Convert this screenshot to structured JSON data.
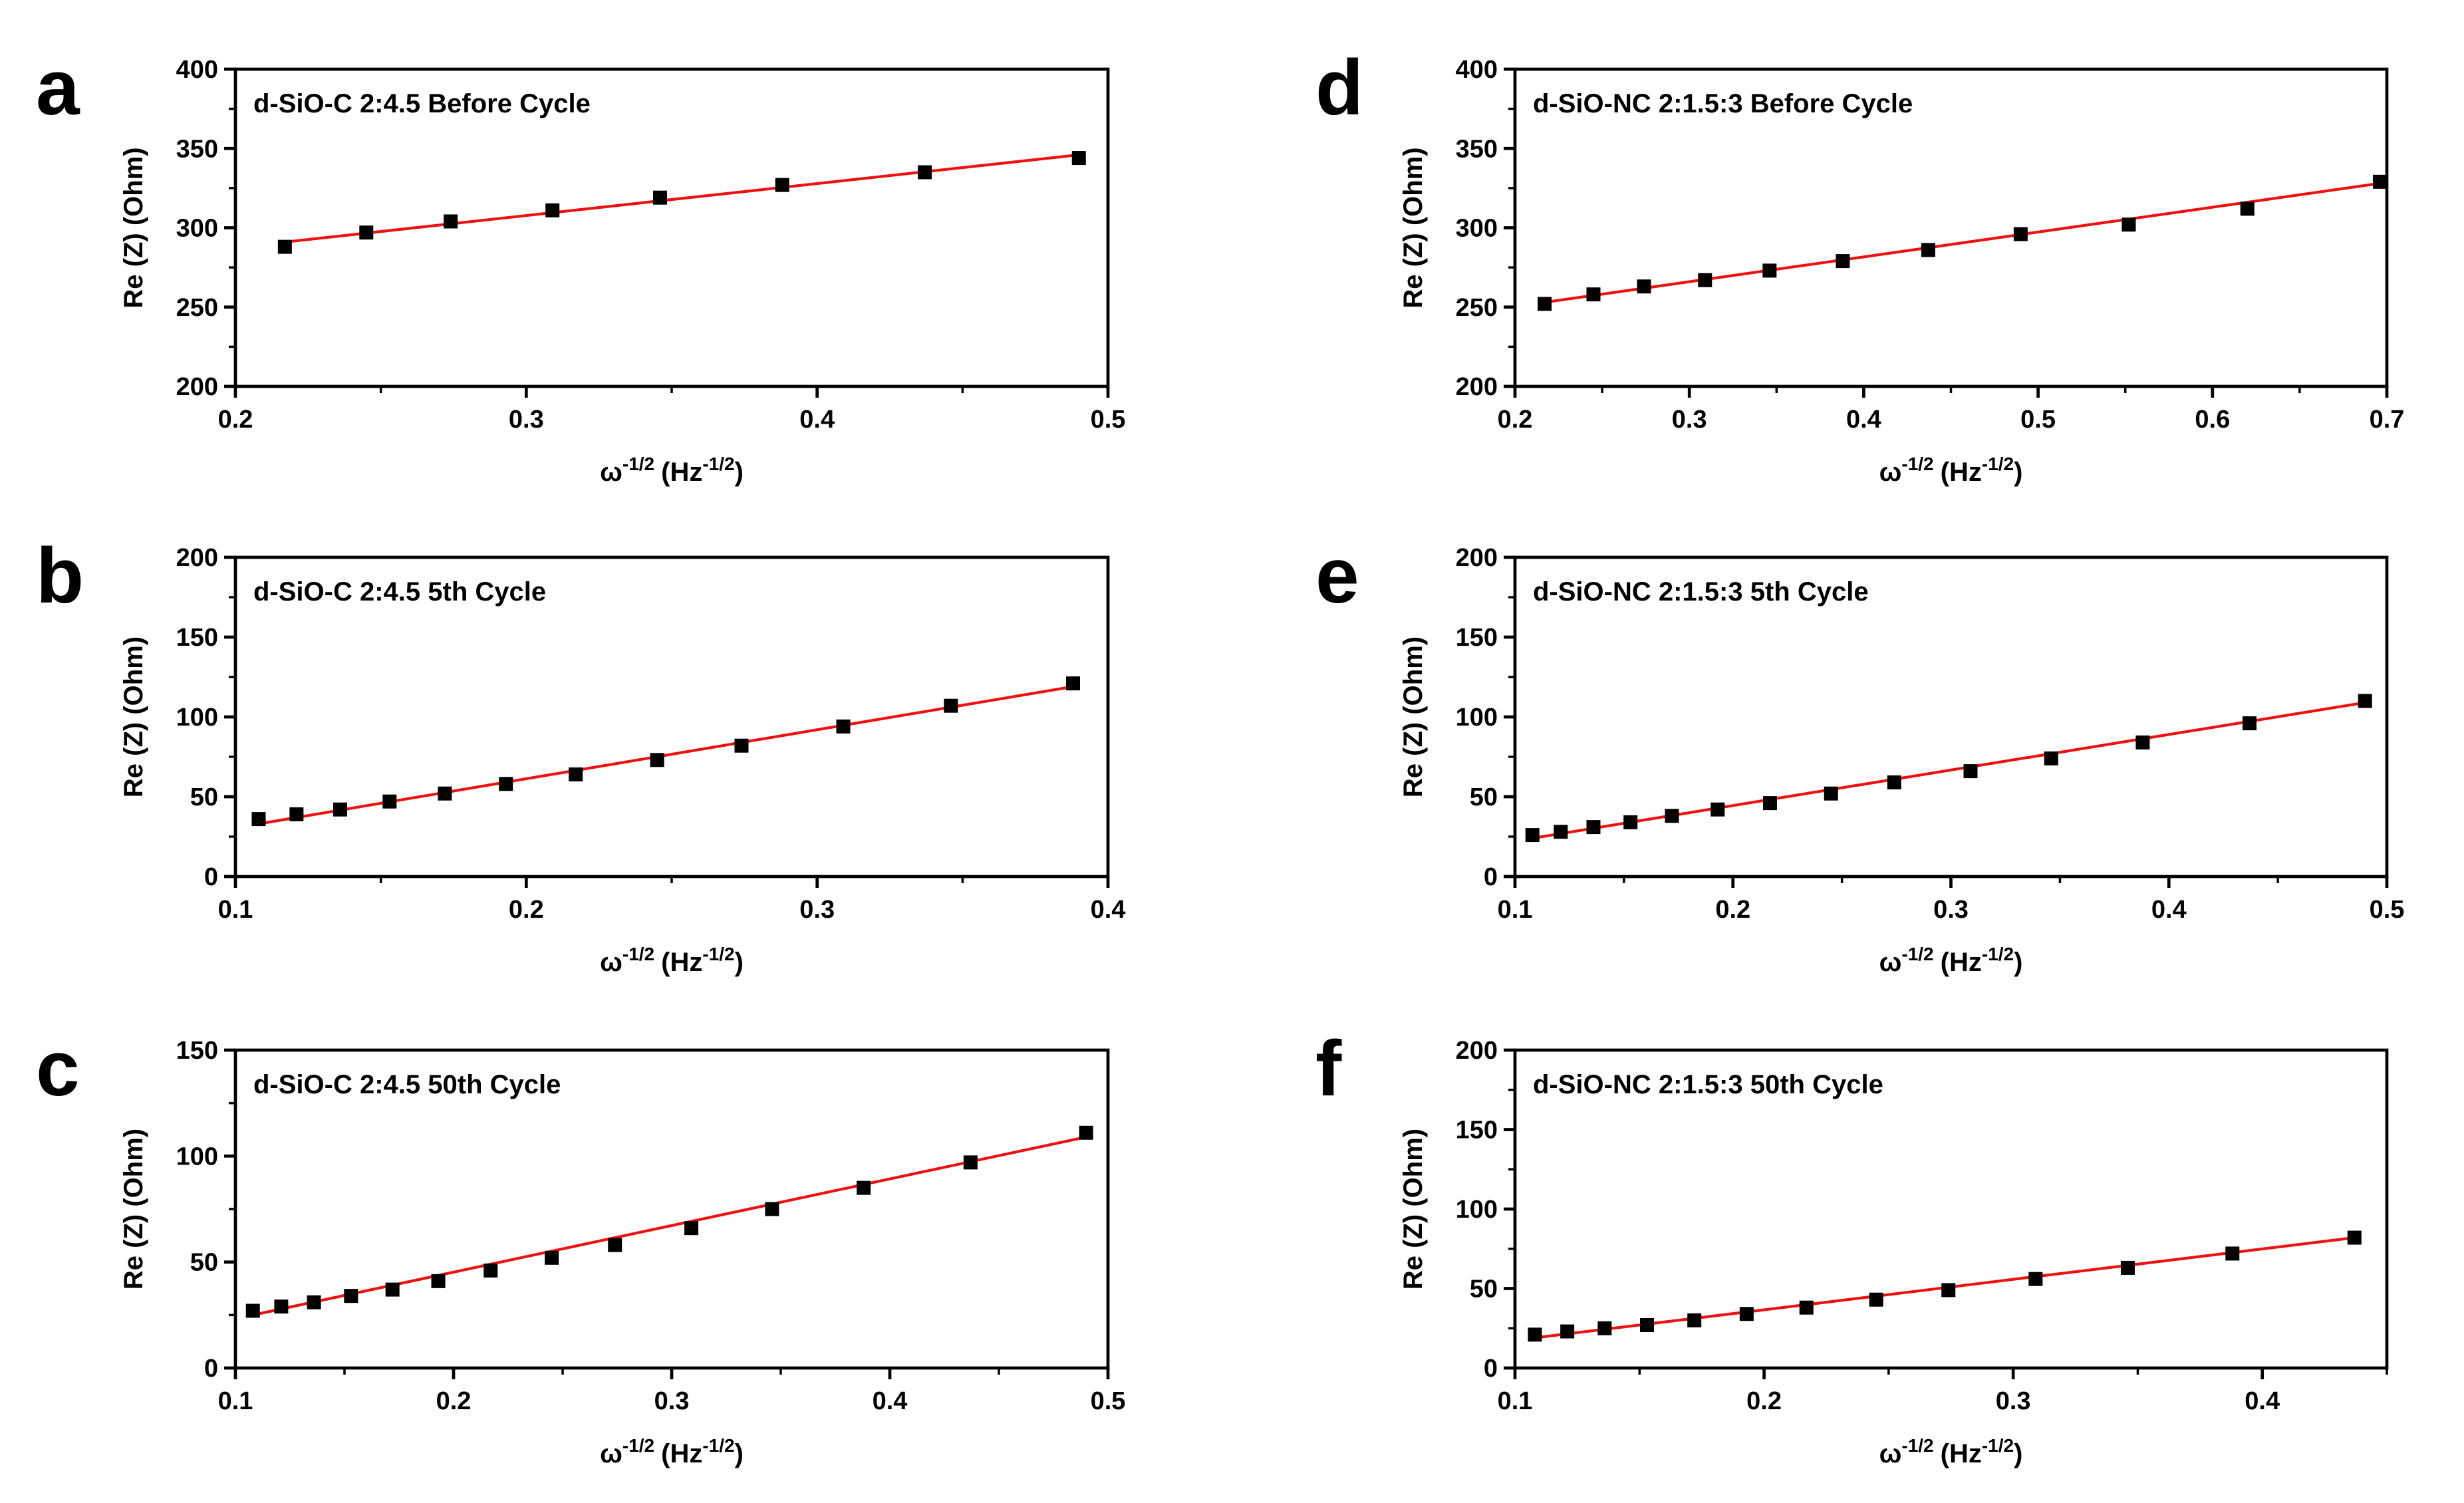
{
  "figure": {
    "x_axis_label": "ω",
    "x_axis_exponent": "-1/2",
    "x_axis_unit_open": "(Hz",
    "x_axis_unit_exponent": "-1/2",
    "x_axis_unit_close": ")",
    "y_axis_label": "Re (Z) (Ohm)",
    "marker_color": "#000000",
    "fit_color": "#ee1111"
  },
  "chart_data": [
    {
      "letter": "a",
      "title": "d-SiO-C 2:4.5 Before Cycle",
      "type": "scatter",
      "xlim": [
        0.2,
        0.5
      ],
      "ylim": [
        200,
        400
      ],
      "xticks": [
        0.2,
        0.3,
        0.4,
        0.5
      ],
      "yticks": [
        200,
        250,
        300,
        350,
        400
      ],
      "xticklabels": [
        "0.2",
        "0.3",
        "0.4",
        "0.5"
      ],
      "yticklabels": [
        "200",
        "250",
        "300",
        "350",
        "400"
      ],
      "x": [
        0.217,
        0.245,
        0.274,
        0.309,
        0.346,
        0.388,
        0.437,
        0.49
      ],
      "y": [
        288,
        297,
        304,
        311,
        319,
        327,
        335,
        344
      ],
      "fit": {
        "x": [
          0.217,
          0.49
        ],
        "y": [
          291,
          346
        ]
      }
    },
    {
      "letter": "b",
      "title": "d-SiO-C 2:4.5 5th Cycle",
      "type": "scatter",
      "xlim": [
        0.1,
        0.4
      ],
      "ylim": [
        0,
        200
      ],
      "xticks": [
        0.1,
        0.2,
        0.3,
        0.4
      ],
      "yticks": [
        0,
        50,
        100,
        150,
        200
      ],
      "xticklabels": [
        "0.1",
        "0.2",
        "0.3",
        "0.4"
      ],
      "yticklabels": [
        "0",
        "50",
        "100",
        "150",
        "200"
      ],
      "x": [
        0.108,
        0.121,
        0.136,
        0.153,
        0.172,
        0.193,
        0.217,
        0.245,
        0.274,
        0.309,
        0.346,
        0.388
      ],
      "y": [
        36,
        39,
        42,
        47,
        52,
        58,
        64,
        73,
        82,
        94,
        107,
        121
      ],
      "fit": {
        "x": [
          0.108,
          0.388
        ],
        "y": [
          33,
          119
        ]
      }
    },
    {
      "letter": "c",
      "title": "d-SiO-C 2:4.5 50th Cycle",
      "type": "scatter",
      "xlim": [
        0.1,
        0.5
      ],
      "ylim": [
        0,
        150
      ],
      "xticks": [
        0.1,
        0.2,
        0.3,
        0.4,
        0.5
      ],
      "yticks": [
        0,
        50,
        100,
        150
      ],
      "xticklabels": [
        "0.1",
        "0.2",
        "0.3",
        "0.4",
        "0.5"
      ],
      "yticklabels": [
        "0",
        "50",
        "100",
        "150"
      ],
      "x": [
        0.108,
        0.121,
        0.136,
        0.153,
        0.172,
        0.193,
        0.217,
        0.245,
        0.274,
        0.309,
        0.346,
        0.388,
        0.437,
        0.49
      ],
      "y": [
        27,
        29,
        31,
        34,
        37,
        41,
        46,
        52,
        58,
        66,
        75,
        85,
        97,
        111
      ],
      "fit": {
        "x": [
          0.108,
          0.49
        ],
        "y": [
          25,
          109
        ]
      }
    },
    {
      "letter": "d",
      "title": "d-SiO-NC 2:1.5:3 Before Cycle",
      "type": "scatter",
      "xlim": [
        0.2,
        0.7
      ],
      "ylim": [
        200,
        400
      ],
      "xticks": [
        0.2,
        0.3,
        0.4,
        0.5,
        0.6,
        0.7
      ],
      "yticks": [
        200,
        250,
        300,
        350,
        400
      ],
      "xticklabels": [
        "0.2",
        "0.3",
        "0.4",
        "0.5",
        "0.6",
        "0.7"
      ],
      "yticklabels": [
        "200",
        "250",
        "300",
        "350",
        "400"
      ],
      "x": [
        0.217,
        0.245,
        0.274,
        0.309,
        0.346,
        0.388,
        0.437,
        0.49,
        0.552,
        0.62,
        0.696
      ],
      "y": [
        252,
        258,
        263,
        267,
        273,
        279,
        286,
        296,
        302,
        312,
        329
      ],
      "fit": {
        "x": [
          0.217,
          0.696
        ],
        "y": [
          253,
          328
        ]
      }
    },
    {
      "letter": "e",
      "title": "d-SiO-NC 2:1.5:3 5th Cycle",
      "type": "scatter",
      "xlim": [
        0.1,
        0.5
      ],
      "ylim": [
        0,
        200
      ],
      "xticks": [
        0.1,
        0.2,
        0.3,
        0.4,
        0.5
      ],
      "yticks": [
        0,
        50,
        100,
        150,
        200
      ],
      "xticklabels": [
        "0.1",
        "0.2",
        "0.3",
        "0.4",
        "0.5"
      ],
      "yticklabels": [
        "0",
        "50",
        "100",
        "150",
        "200"
      ],
      "x": [
        0.108,
        0.121,
        0.136,
        0.153,
        0.172,
        0.193,
        0.217,
        0.245,
        0.274,
        0.309,
        0.346,
        0.388,
        0.437,
        0.49
      ],
      "y": [
        26,
        28,
        31,
        34,
        38,
        42,
        46,
        52,
        59,
        66,
        74,
        84,
        96,
        110
      ],
      "fit": {
        "x": [
          0.108,
          0.49
        ],
        "y": [
          24,
          109
        ]
      }
    },
    {
      "letter": "f",
      "title": "d-SiO-NC 2:1.5:3 50th Cycle",
      "type": "scatter",
      "xlim": [
        0.1,
        0.45
      ],
      "ylim": [
        0,
        200
      ],
      "xticks": [
        0.1,
        0.2,
        0.3,
        0.4
      ],
      "yticks": [
        0,
        50,
        100,
        150,
        200
      ],
      "xticklabels": [
        "0.1",
        "0.2",
        "0.3",
        "0.4"
      ],
      "yticklabels": [
        "0",
        "50",
        "100",
        "150",
        "200"
      ],
      "x": [
        0.108,
        0.121,
        0.136,
        0.153,
        0.172,
        0.193,
        0.217,
        0.245,
        0.274,
        0.309,
        0.346,
        0.388,
        0.437
      ],
      "y": [
        21,
        23,
        25,
        27,
        30,
        34,
        38,
        43,
        49,
        56,
        63,
        72,
        82
      ],
      "fit": {
        "x": [
          0.108,
          0.437
        ],
        "y": [
          19,
          82
        ]
      }
    }
  ]
}
